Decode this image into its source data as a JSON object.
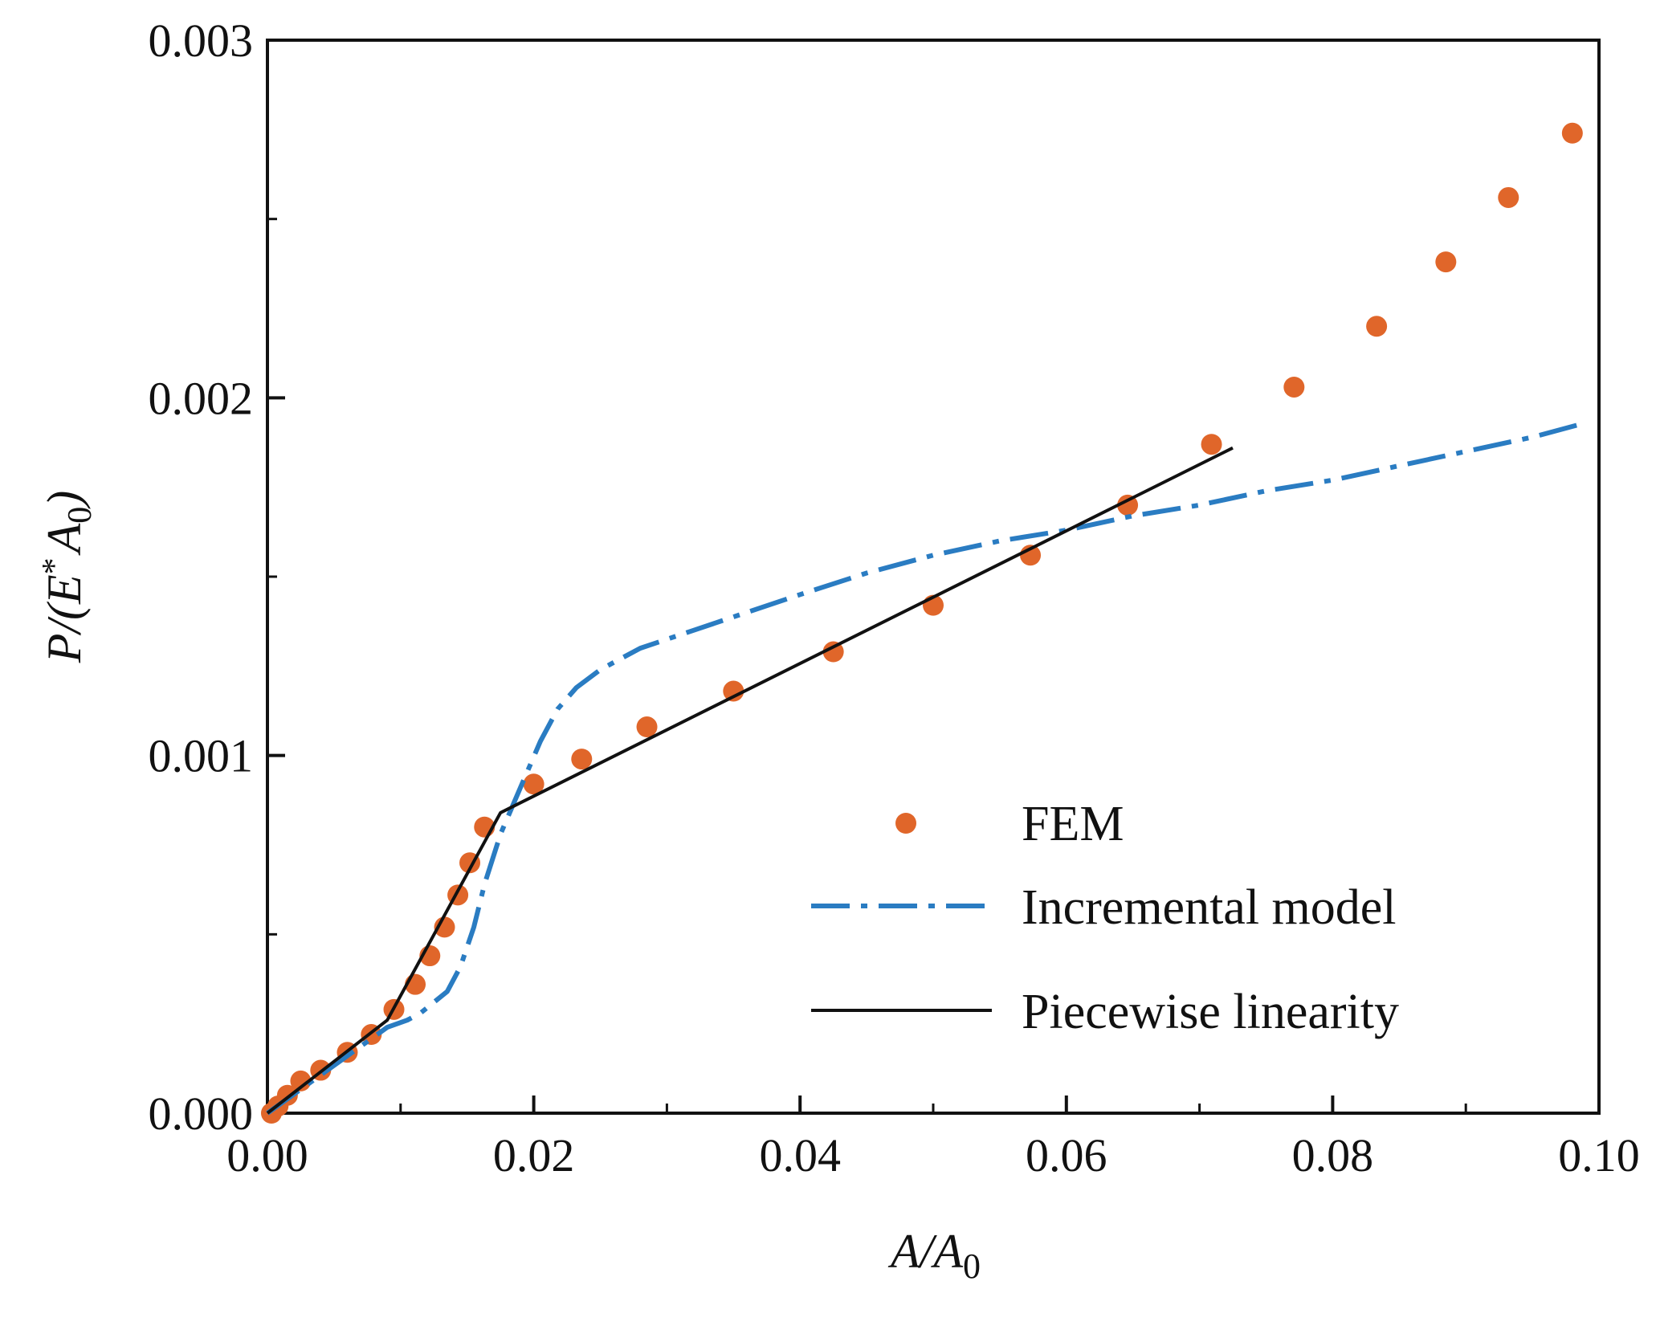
{
  "chart_data": {
    "type": "line",
    "title": "",
    "xlabel": {
      "main": "A/A",
      "sub": "0"
    },
    "ylabel": {
      "pre": "P/(",
      "main": "E",
      "sup": "*",
      "mid": "A",
      "sub": "0",
      "post": ")"
    },
    "xlim": [
      0,
      0.1
    ],
    "ylim": [
      0,
      0.003
    ],
    "xticks": [
      0,
      0.02,
      0.04,
      0.06,
      0.08,
      0.1
    ],
    "xtick_labels": [
      "0.00",
      "0.02",
      "0.04",
      "0.06",
      "0.08",
      "0.10"
    ],
    "yticks": [
      0,
      0.001,
      0.002,
      0.003
    ],
    "ytick_labels": [
      "0.000",
      "0.001",
      "0.002",
      "0.003"
    ],
    "grid": false,
    "legend_position": "lower-right",
    "series": [
      {
        "name": "FEM",
        "style": "markers",
        "color": "#e0662a",
        "x": [
          0.0003,
          0.0008,
          0.0015,
          0.0025,
          0.004,
          0.006,
          0.0078,
          0.0095,
          0.0111,
          0.0122,
          0.0133,
          0.0143,
          0.0152,
          0.0163,
          0.02,
          0.0236,
          0.0285,
          0.035,
          0.0425,
          0.05,
          0.0573,
          0.0646,
          0.0709,
          0.0771,
          0.0833,
          0.0885,
          0.0932,
          0.098
        ],
        "y": [
          0.0,
          2e-05,
          5e-05,
          9e-05,
          0.00012,
          0.00017,
          0.00022,
          0.00029,
          0.00036,
          0.00044,
          0.00052,
          0.00061,
          0.0007,
          0.0008,
          0.00092,
          0.00099,
          0.00108,
          0.00118,
          0.00129,
          0.00142,
          0.00156,
          0.0017,
          0.00187,
          0.00203,
          0.0022,
          0.00238,
          0.00256,
          0.00274
        ]
      },
      {
        "name": "Incremental model",
        "style": "dash-dot",
        "color": "#2a7cc2",
        "x": [
          0,
          0.003,
          0.006,
          0.009,
          0.0105,
          0.0115,
          0.0125,
          0.0135,
          0.0145,
          0.0155,
          0.0163,
          0.0175,
          0.019,
          0.0205,
          0.0218,
          0.0232,
          0.025,
          0.028,
          0.032,
          0.036,
          0.04,
          0.045,
          0.05,
          0.055,
          0.06,
          0.065,
          0.07,
          0.075,
          0.08,
          0.085,
          0.09,
          0.095,
          0.099
        ],
        "y": [
          0,
          8e-05,
          0.00016,
          0.00024,
          0.00026,
          0.00028,
          0.00031,
          0.00034,
          0.00041,
          0.00052,
          0.00064,
          0.00078,
          0.00091,
          0.00104,
          0.00113,
          0.00119,
          0.00124,
          0.0013,
          0.00135,
          0.0014,
          0.00145,
          0.00151,
          0.00156,
          0.0016,
          0.00163,
          0.00167,
          0.0017,
          0.00174,
          0.00177,
          0.00181,
          0.00185,
          0.00189,
          0.00193
        ]
      },
      {
        "name": "Piecewise linearity",
        "style": "solid",
        "color": "#111111",
        "x": [
          0,
          0.009,
          0.0175,
          0.0725
        ],
        "y": [
          0,
          0.00026,
          0.00084,
          0.00186
        ]
      }
    ]
  }
}
